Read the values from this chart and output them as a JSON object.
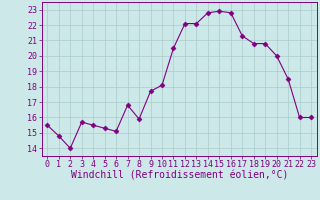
{
  "x": [
    0,
    1,
    2,
    3,
    4,
    5,
    6,
    7,
    8,
    9,
    10,
    11,
    12,
    13,
    14,
    15,
    16,
    17,
    18,
    19,
    20,
    21,
    22,
    23
  ],
  "y": [
    15.5,
    14.8,
    14.0,
    15.7,
    15.5,
    15.3,
    15.1,
    16.8,
    15.9,
    17.7,
    18.1,
    20.5,
    22.1,
    22.1,
    22.8,
    22.9,
    22.8,
    21.3,
    20.8,
    20.8,
    20.0,
    18.5,
    16.0,
    16.0
  ],
  "line_color": "#800080",
  "marker": "D",
  "marker_size": 2.5,
  "bg_color": "#cce8e8",
  "grid_color": "#aacccc",
  "xlabel": "Windchill (Refroidissement éolien,°C)",
  "xlabel_fontsize": 7,
  "tick_color": "#800080",
  "tick_label_color": "#800080",
  "ylim": [
    13.5,
    23.5
  ],
  "yticks": [
    14,
    15,
    16,
    17,
    18,
    19,
    20,
    21,
    22,
    23
  ],
  "xticks": [
    0,
    1,
    2,
    3,
    4,
    5,
    6,
    7,
    8,
    9,
    10,
    11,
    12,
    13,
    14,
    15,
    16,
    17,
    18,
    19,
    20,
    21,
    22,
    23
  ],
  "tick_fontsize": 6,
  "linewidth": 0.8
}
